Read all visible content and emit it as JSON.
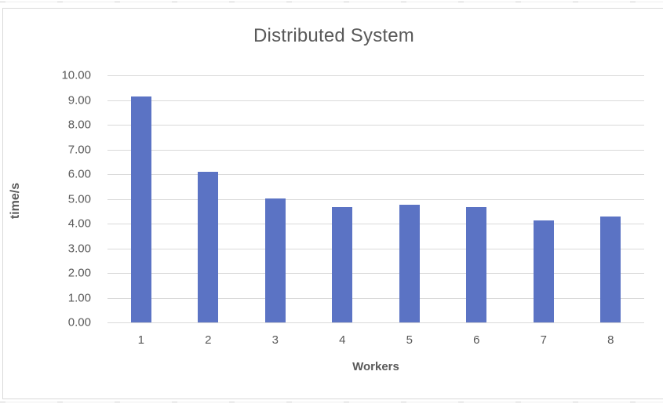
{
  "chart": {
    "title": "Distributed System",
    "x_axis_label": "Workers",
    "y_axis_label": "time/s"
  },
  "chart_data": {
    "type": "bar",
    "title": "Distributed System",
    "xlabel": "Workers",
    "ylabel": "time/s",
    "categories": [
      "1",
      "2",
      "3",
      "4",
      "5",
      "6",
      "7",
      "8"
    ],
    "values": [
      9.14,
      6.08,
      5.03,
      4.66,
      4.76,
      4.67,
      4.12,
      4.28
    ],
    "ylim": [
      0,
      10
    ],
    "y_tick_step": 1,
    "y_tick_decimals": 2,
    "grid": true,
    "legend": false,
    "colors": {
      "bar": "#5b73c4",
      "gridline": "#d9d9d9",
      "text": "#595959",
      "chart_border": "#d9d9d9"
    }
  }
}
